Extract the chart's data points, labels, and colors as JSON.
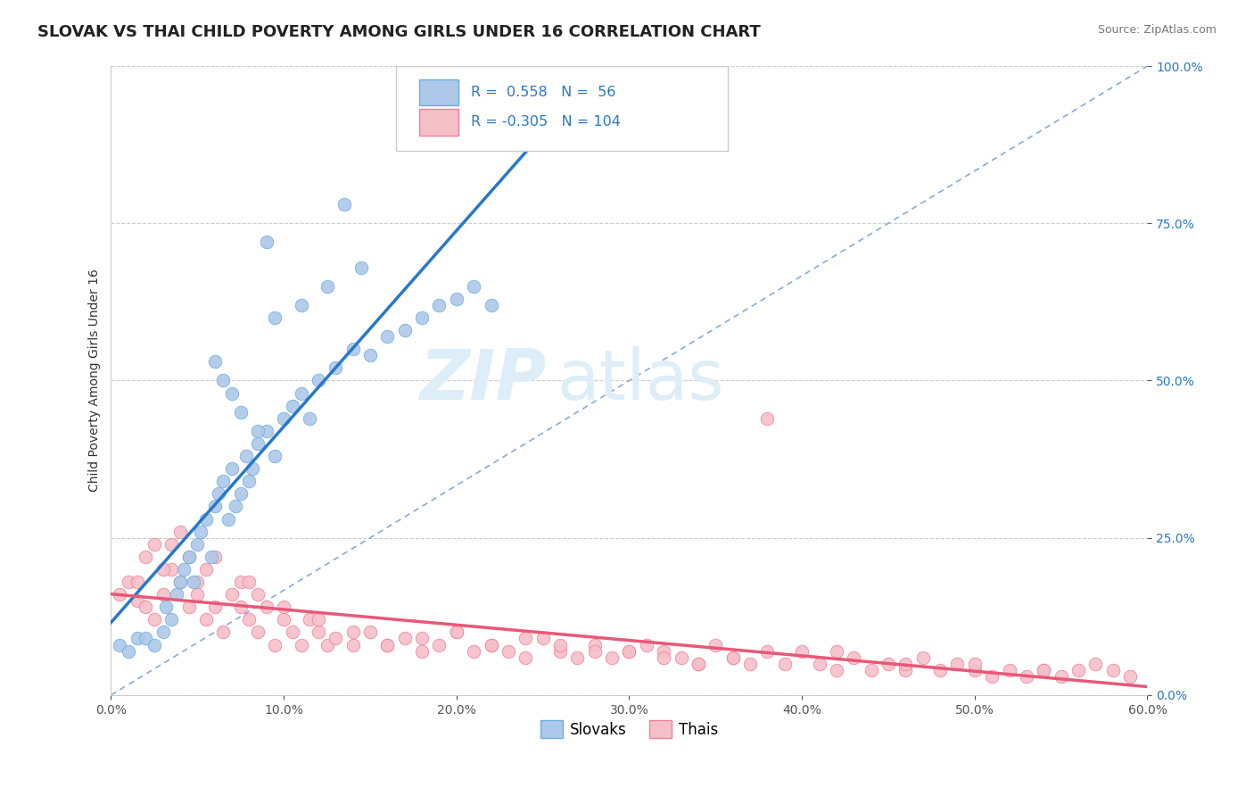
{
  "title": "SLOVAK VS THAI CHILD POVERTY AMONG GIRLS UNDER 16 CORRELATION CHART",
  "source": "Source: ZipAtlas.com",
  "ylabel": "Child Poverty Among Girls Under 16",
  "xlim": [
    0.0,
    60.0
  ],
  "ylim": [
    0.0,
    100.0
  ],
  "x_ticks": [
    0.0,
    10.0,
    20.0,
    30.0,
    40.0,
    50.0,
    60.0
  ],
  "y_ticks": [
    0.0,
    25.0,
    50.0,
    75.0,
    100.0
  ],
  "slovak_R": 0.558,
  "slovak_N": 56,
  "thai_R": -0.305,
  "thai_N": 104,
  "slovak_color": "#adc8e8",
  "slovak_edge_color": "#6aaee0",
  "slovak_line_color": "#2878c8",
  "thai_color": "#f5bfc8",
  "thai_edge_color": "#f08098",
  "thai_line_color": "#e85878",
  "ref_line_color": "#88aadd",
  "background_color": "#ffffff",
  "grid_color": "#cccccc",
  "watermark_text": "ZIPatlas",
  "watermark_color": "#ddeef8",
  "legend_text_color": "#2878c8",
  "title_fontsize": 13,
  "axis_label_fontsize": 10,
  "tick_fontsize": 10,
  "slovak_scatter_x": [
    0.5,
    1.0,
    1.5,
    2.0,
    2.5,
    3.0,
    3.2,
    3.5,
    3.8,
    4.0,
    4.2,
    4.5,
    4.8,
    5.0,
    5.2,
    5.5,
    5.8,
    6.0,
    6.2,
    6.5,
    6.8,
    7.0,
    7.2,
    7.5,
    7.8,
    8.0,
    8.2,
    8.5,
    9.0,
    9.5,
    10.0,
    10.5,
    11.0,
    11.5,
    12.0,
    13.0,
    14.0,
    15.0,
    16.0,
    17.0,
    18.0,
    19.0,
    20.0,
    21.0,
    22.0,
    6.0,
    7.5,
    8.5,
    6.5,
    7.0,
    9.5,
    11.0,
    12.5,
    14.5,
    9.0,
    13.5
  ],
  "slovak_scatter_y": [
    8.0,
    7.0,
    9.0,
    9.0,
    8.0,
    10.0,
    14.0,
    12.0,
    16.0,
    18.0,
    20.0,
    22.0,
    18.0,
    24.0,
    26.0,
    28.0,
    22.0,
    30.0,
    32.0,
    34.0,
    28.0,
    36.0,
    30.0,
    32.0,
    38.0,
    34.0,
    36.0,
    40.0,
    42.0,
    38.0,
    44.0,
    46.0,
    48.0,
    44.0,
    50.0,
    52.0,
    55.0,
    54.0,
    57.0,
    58.0,
    60.0,
    62.0,
    63.0,
    65.0,
    62.0,
    53.0,
    45.0,
    42.0,
    50.0,
    48.0,
    60.0,
    62.0,
    65.0,
    68.0,
    72.0,
    78.0
  ],
  "thai_scatter_x": [
    0.5,
    1.0,
    1.5,
    2.0,
    2.5,
    3.0,
    3.5,
    4.0,
    4.5,
    5.0,
    5.5,
    6.0,
    6.5,
    7.0,
    7.5,
    8.0,
    8.5,
    9.0,
    9.5,
    10.0,
    10.5,
    11.0,
    11.5,
    12.0,
    12.5,
    13.0,
    14.0,
    15.0,
    16.0,
    17.0,
    18.0,
    19.0,
    20.0,
    21.0,
    22.0,
    23.0,
    24.0,
    25.0,
    26.0,
    27.0,
    28.0,
    29.0,
    30.0,
    31.0,
    32.0,
    33.0,
    34.0,
    35.0,
    36.0,
    37.0,
    38.0,
    39.0,
    40.0,
    41.0,
    42.0,
    43.0,
    44.0,
    45.0,
    46.0,
    47.0,
    48.0,
    49.0,
    50.0,
    51.0,
    52.0,
    53.0,
    54.0,
    55.0,
    56.0,
    57.0,
    58.0,
    59.0,
    2.0,
    3.5,
    5.5,
    7.5,
    4.0,
    6.0,
    8.5,
    2.5,
    4.5,
    1.5,
    3.0,
    5.0,
    38.0,
    8.0,
    10.0,
    12.0,
    14.0,
    16.0,
    18.0,
    20.0,
    22.0,
    24.0,
    26.0,
    28.0,
    30.0,
    32.0,
    34.0,
    36.0,
    42.0,
    46.0,
    50.0,
    54.0
  ],
  "thai_scatter_y": [
    16.0,
    18.0,
    15.0,
    14.0,
    12.0,
    16.0,
    20.0,
    18.0,
    14.0,
    16.0,
    12.0,
    14.0,
    10.0,
    16.0,
    14.0,
    12.0,
    10.0,
    14.0,
    8.0,
    12.0,
    10.0,
    8.0,
    12.0,
    10.0,
    8.0,
    9.0,
    8.0,
    10.0,
    8.0,
    9.0,
    7.0,
    8.0,
    10.0,
    7.0,
    8.0,
    7.0,
    6.0,
    9.0,
    7.0,
    6.0,
    8.0,
    6.0,
    7.0,
    8.0,
    7.0,
    6.0,
    5.0,
    8.0,
    6.0,
    5.0,
    7.0,
    5.0,
    7.0,
    5.0,
    4.0,
    6.0,
    4.0,
    5.0,
    4.0,
    6.0,
    4.0,
    5.0,
    4.0,
    3.0,
    4.0,
    3.0,
    4.0,
    3.0,
    4.0,
    5.0,
    4.0,
    3.0,
    22.0,
    24.0,
    20.0,
    18.0,
    26.0,
    22.0,
    16.0,
    24.0,
    22.0,
    18.0,
    20.0,
    18.0,
    44.0,
    18.0,
    14.0,
    12.0,
    10.0,
    8.0,
    9.0,
    10.0,
    8.0,
    9.0,
    8.0,
    7.0,
    7.0,
    6.0,
    5.0,
    6.0,
    7.0,
    5.0,
    5.0,
    4.0
  ]
}
